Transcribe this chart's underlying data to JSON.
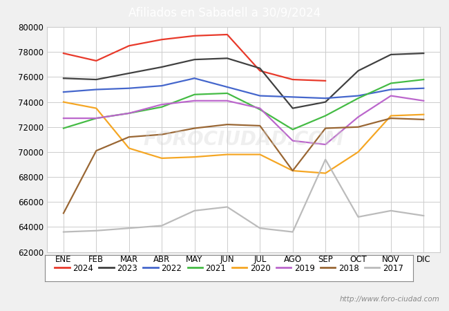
{
  "title": "Afiliados en Sabadell a 30/9/2024",
  "title_bg_color": "#3a7ebf",
  "title_text_color": "#ffffff",
  "ylim": [
    62000,
    80000
  ],
  "yticks": [
    62000,
    64000,
    66000,
    68000,
    70000,
    72000,
    74000,
    76000,
    78000,
    80000
  ],
  "months": [
    "ENE",
    "FEB",
    "MAR",
    "ABR",
    "MAY",
    "JUN",
    "JUL",
    "AGO",
    "SEP",
    "OCT",
    "NOV",
    "DIC"
  ],
  "watermark": "FOROCIUDAD.COM",
  "url": "http://www.foro-ciudad.com",
  "series": {
    "2024": {
      "color": "#e8392a",
      "data": [
        77900,
        77300,
        78500,
        79000,
        79300,
        79400,
        76500,
        75800,
        75700,
        null,
        null,
        null
      ]
    },
    "2023": {
      "color": "#404040",
      "data": [
        75900,
        75800,
        76300,
        76800,
        77400,
        77500,
        76700,
        73500,
        74000,
        76500,
        77800,
        77900
      ]
    },
    "2022": {
      "color": "#4466cc",
      "data": [
        74800,
        75000,
        75100,
        75300,
        75900,
        75200,
        74500,
        74400,
        74300,
        74500,
        75000,
        75100
      ]
    },
    "2021": {
      "color": "#44bb44",
      "data": [
        71900,
        72700,
        73100,
        73600,
        74600,
        74700,
        73400,
        71800,
        72900,
        74300,
        75500,
        75800
      ]
    },
    "2020": {
      "color": "#f5a623",
      "data": [
        74000,
        73500,
        70300,
        69500,
        69600,
        69800,
        69800,
        68500,
        68300,
        70000,
        72900,
        73000
      ]
    },
    "2019": {
      "color": "#bb66cc",
      "data": [
        72700,
        72700,
        73100,
        73800,
        74100,
        74100,
        73500,
        70900,
        70600,
        72800,
        74500,
        74100
      ]
    },
    "2018": {
      "color": "#996633",
      "data": [
        65100,
        70100,
        71200,
        71400,
        71900,
        72200,
        72100,
        68500,
        71900,
        72000,
        72700,
        72600
      ]
    },
    "2017": {
      "color": "#bbbbbb",
      "data": [
        63600,
        63700,
        63900,
        64100,
        65300,
        65600,
        63900,
        63600,
        69400,
        64800,
        65300,
        64900
      ]
    }
  },
  "legend_order": [
    "2024",
    "2023",
    "2022",
    "2021",
    "2020",
    "2019",
    "2018",
    "2017"
  ],
  "grid_color": "#cccccc",
  "bg_color": "#f0f0f0",
  "plot_bg_color": "#ffffff"
}
